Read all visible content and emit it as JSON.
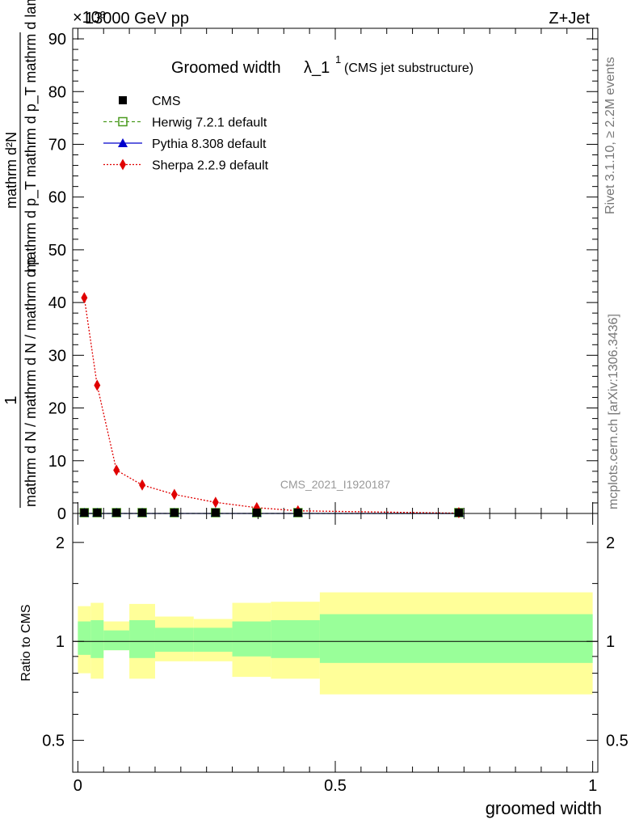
{
  "header": {
    "left": "13000 GeV pp",
    "right": "Z+Jet",
    "exponent": "×10³"
  },
  "side_labels": {
    "rivet": "Rivet 3.1.10, ≥ 2.2M events",
    "mcplots": "mcplots.cern.ch [arXiv:1306.3436]"
  },
  "watermark": "CMS_2021_I1920187",
  "chart_data": [
    {
      "type": "line",
      "title": "Groomed width",
      "title_math": "λ_1",
      "title_sup": "1",
      "title_sub_note": "(CMS jet substructure)",
      "ylabel_top": "1",
      "ylabel_bottom": "mathrm d N / mathrm d N / mathrm d p_T mathrm d p_T mathrm d lambda",
      "ylabel_num": "mathrm d²N",
      "ylabel_den": "mathrm d p_T mathrm d p_T mathrm d lambda",
      "ylabel_frac_left": "mathrm d N / mathrm d N / mathrm d p",
      "ylim": [
        0,
        92
      ],
      "xlim": [
        -0.01,
        1.01
      ],
      "y_ticks": [
        "0",
        "10",
        "20",
        "30",
        "40",
        "50",
        "60",
        "70",
        "80",
        "90"
      ],
      "y_tick_values": [
        0,
        10,
        20,
        30,
        40,
        50,
        60,
        70,
        80,
        90
      ],
      "legend_position": "top-left",
      "series": [
        {
          "name": "CMS",
          "color": "#000000",
          "marker": "square",
          "x": [
            0.0125,
            0.0375,
            0.075,
            0.125,
            0.1875,
            0.2675,
            0.3475,
            0.4275,
            0.74
          ],
          "y": [
            0.0,
            0.0,
            0.0,
            0.0,
            0.0,
            0.0,
            0.0,
            0.0,
            0.0
          ]
        },
        {
          "name": "Herwig 7.2.1 default",
          "color": "#4a9a1e",
          "marker": "open-square",
          "x": [
            0.0125,
            0.0375,
            0.075,
            0.125,
            0.1875,
            0.2675,
            0.3475,
            0.4275,
            0.74
          ],
          "y": [
            0.0,
            0.0,
            0.0,
            0.0,
            0.0,
            0.0,
            0.0,
            0.0,
            0.0
          ]
        },
        {
          "name": "Pythia 8.308 default",
          "color": "#0000cc",
          "marker": "triangle",
          "x": [
            0.0125,
            0.0375,
            0.075,
            0.125,
            0.1875,
            0.2675,
            0.3475,
            0.4275,
            0.74
          ],
          "y": [
            0.0,
            0.0,
            0.0,
            0.0,
            0.0,
            0.0,
            0.0,
            0.0,
            0.0
          ]
        },
        {
          "name": "Sherpa 2.2.9 default",
          "color": "#e00000",
          "marker": "diamond",
          "x": [
            0.0125,
            0.0375,
            0.075,
            0.125,
            0.1875,
            0.2675,
            0.3475,
            0.4275,
            0.74
          ],
          "y": [
            40.9,
            24.3,
            8.2,
            5.4,
            3.6,
            2.1,
            1.1,
            0.5,
            0.05
          ]
        }
      ]
    },
    {
      "type": "area",
      "ylabel": "Ratio to CMS",
      "xlabel": "groomed width",
      "ylim": [
        0.4,
        2.45
      ],
      "xlim": [
        -0.01,
        1.01
      ],
      "log_y": true,
      "y_ticks": [
        "0.5",
        "1",
        "2"
      ],
      "y_tick_values": [
        0.5,
        1.0,
        2.0
      ],
      "x_ticks": [
        "0",
        "0.5",
        "1"
      ],
      "x_tick_values": [
        0,
        0.5,
        1.0
      ],
      "reference_line": 1.0,
      "bins": [
        {
          "x0": 0.0,
          "x1": 0.025,
          "inner": [
            0.91,
            1.15
          ],
          "outer": [
            0.8,
            1.28
          ]
        },
        {
          "x0": 0.025,
          "x1": 0.05,
          "inner": [
            0.89,
            1.16
          ],
          "outer": [
            0.77,
            1.31
          ]
        },
        {
          "x0": 0.05,
          "x1": 0.1,
          "inner": [
            0.94,
            1.08
          ],
          "outer": [
            0.94,
            1.15
          ]
        },
        {
          "x0": 0.1,
          "x1": 0.15,
          "inner": [
            0.89,
            1.16
          ],
          "outer": [
            0.77,
            1.3
          ]
        },
        {
          "x0": 0.15,
          "x1": 0.225,
          "inner": [
            0.93,
            1.1
          ],
          "outer": [
            0.87,
            1.19
          ]
        },
        {
          "x0": 0.225,
          "x1": 0.3,
          "inner": [
            0.93,
            1.1
          ],
          "outer": [
            0.87,
            1.17
          ]
        },
        {
          "x0": 0.3,
          "x1": 0.375,
          "inner": [
            0.9,
            1.15
          ],
          "outer": [
            0.78,
            1.31
          ]
        },
        {
          "x0": 0.375,
          "x1": 0.47,
          "inner": [
            0.89,
            1.16
          ],
          "outer": [
            0.77,
            1.32
          ]
        },
        {
          "x0": 0.47,
          "x1": 1.0,
          "inner": [
            0.86,
            1.21
          ],
          "outer": [
            0.69,
            1.41
          ]
        }
      ],
      "inner_color": "#99ff99",
      "outer_color": "#ffff99"
    }
  ]
}
